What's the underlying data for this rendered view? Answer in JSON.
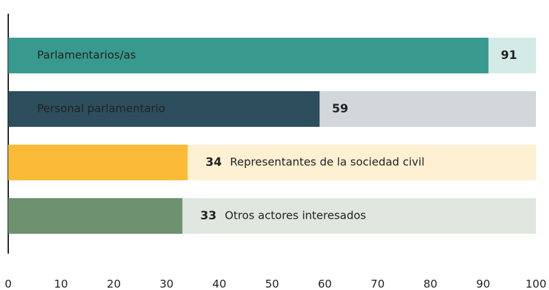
{
  "chart_data": {
    "type": "bar",
    "orientation": "horizontal",
    "categories": [
      "Parlamentarios/as",
      "Personal parlamentario",
      "Representantes de la sociedad civil",
      "Otros actores interesados"
    ],
    "values": [
      91,
      59,
      34,
      33
    ],
    "colors": [
      "#389a8e",
      "#2c4e5d",
      "#fbbb38",
      "#6e9270"
    ],
    "track_colors": [
      "#d4eae6",
      "#d1d7da",
      "#fdf0d3",
      "#dfe7de"
    ],
    "xlim": [
      0,
      100
    ],
    "xticks": [
      0,
      10,
      20,
      30,
      40,
      50,
      60,
      70,
      80,
      90,
      100
    ]
  }
}
